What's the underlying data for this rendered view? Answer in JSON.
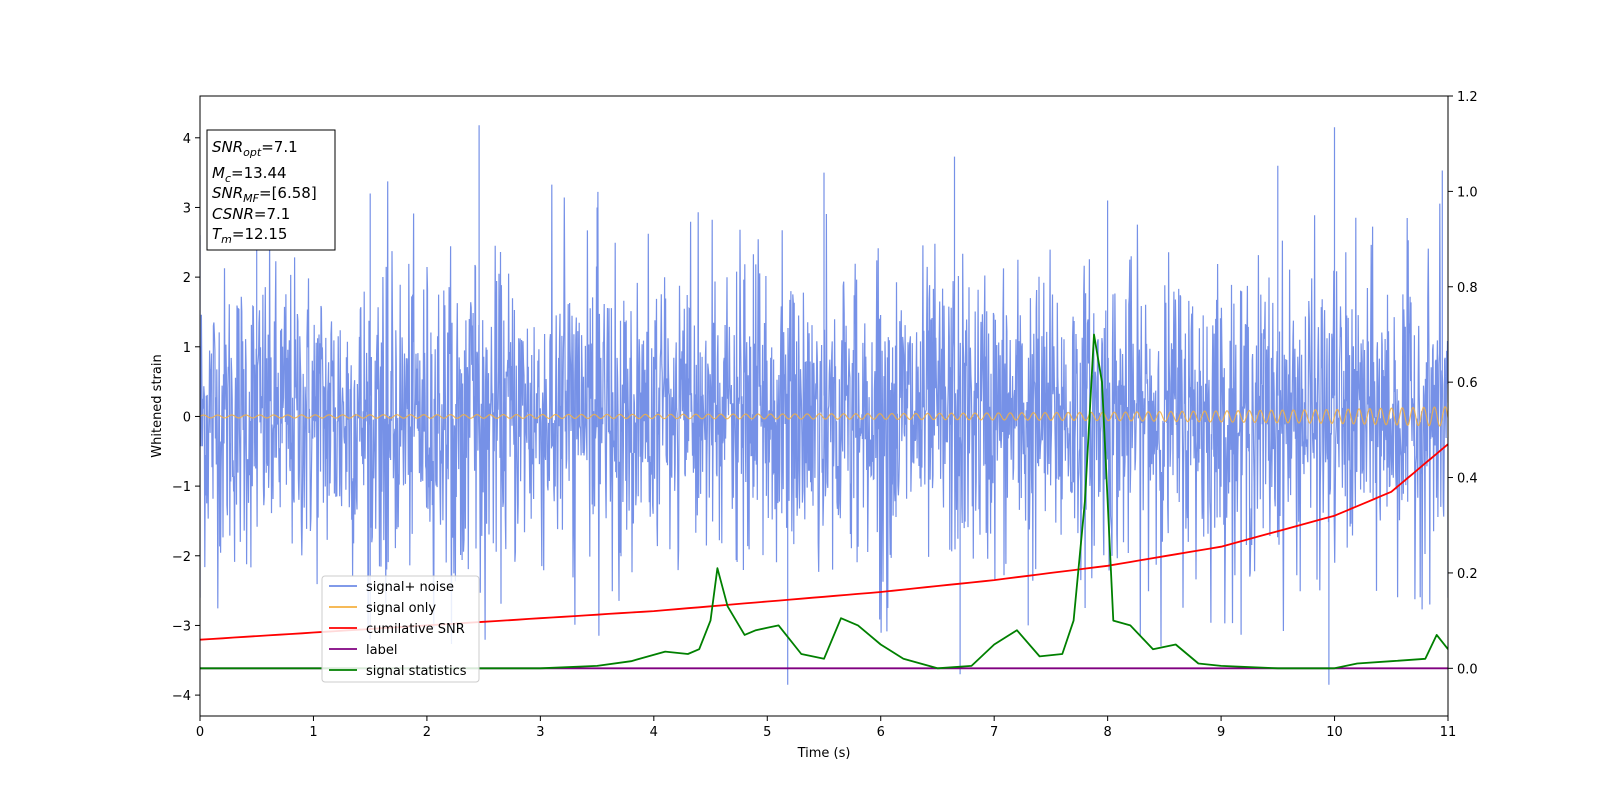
{
  "chart_data": {
    "type": "line",
    "xlabel": "Time (s)",
    "ylabel": "Whitened strain",
    "xlim": [
      0,
      11
    ],
    "ylim": [
      -4.3,
      4.6
    ],
    "ylim_right": [
      -0.1,
      1.2
    ],
    "x_ticks": [
      0,
      1,
      2,
      3,
      4,
      5,
      6,
      7,
      8,
      9,
      10,
      11
    ],
    "y_ticks": [
      -4,
      -3,
      -2,
      -1,
      0,
      1,
      2,
      3,
      4
    ],
    "y_ticks_right": [
      "0.0",
      "0.2",
      "0.4",
      "0.6",
      "0.8",
      "1.0",
      "1.2"
    ],
    "y_tick_labels": [
      "−4",
      "−3",
      "−2",
      "−1",
      "0",
      "1",
      "2",
      "3",
      "4"
    ],
    "colors": {
      "signal_noise": "#6f8be6",
      "signal_only": "#f5b041",
      "cumulative_snr": "#ff0000",
      "label": "#800080",
      "signal_statistics": "#008000"
    },
    "series": [
      {
        "name": "signal+ noise",
        "axis": "left",
        "description": "whitened noise, approx. gaussian with max excursions",
        "envelope_max": [
          [
            0.0,
            2.6
          ],
          [
            0.5,
            3.0
          ],
          [
            1.5,
            3.2
          ],
          [
            2.46,
            4.18
          ],
          [
            3.5,
            3.0
          ],
          [
            5.5,
            3.5
          ],
          [
            6.65,
            3.73
          ],
          [
            8.0,
            3.1
          ],
          [
            9.5,
            3.6
          ],
          [
            10.0,
            4.15
          ],
          [
            10.95,
            3.53
          ]
        ],
        "envelope_min": [
          [
            0.0,
            -2.6
          ],
          [
            1.5,
            -3.2
          ],
          [
            5.18,
            -3.85
          ],
          [
            6.7,
            -3.7
          ],
          [
            7.3,
            -3.0
          ],
          [
            9.95,
            -3.85
          ],
          [
            11.0,
            -2.6
          ]
        ]
      },
      {
        "name": "signal only",
        "axis": "left",
        "x": [
          0,
          2,
          4,
          6,
          8,
          9,
          10,
          10.5,
          11
        ],
        "amplitude": [
          0.02,
          0.025,
          0.03,
          0.04,
          0.06,
          0.08,
          0.1,
          0.12,
          0.14
        ]
      },
      {
        "name": "cumilative SNR",
        "axis": "right",
        "x": [
          0,
          1,
          2,
          3,
          4,
          5,
          6,
          7,
          8,
          9,
          10,
          10.5,
          11
        ],
        "values": [
          0.06,
          0.075,
          0.09,
          0.105,
          0.12,
          0.14,
          0.16,
          0.185,
          0.215,
          0.255,
          0.32,
          0.37,
          0.47
        ]
      },
      {
        "name": "label",
        "axis": "right",
        "x": [
          0,
          11
        ],
        "values": [
          0.0,
          0.0
        ]
      },
      {
        "name": "signal statistics",
        "axis": "right",
        "x": [
          0,
          0.5,
          1,
          1.5,
          2,
          2.5,
          3,
          3.5,
          3.8,
          4.1,
          4.3,
          4.4,
          4.5,
          4.56,
          4.65,
          4.8,
          4.9,
          5,
          5.1,
          5.3,
          5.5,
          5.65,
          5.8,
          6,
          6.2,
          6.5,
          6.8,
          7.0,
          7.2,
          7.4,
          7.6,
          7.7,
          7.8,
          7.88,
          7.95,
          8.05,
          8.2,
          8.4,
          8.6,
          8.8,
          9.0,
          9.5,
          10.0,
          10.2,
          10.5,
          10.8,
          10.9,
          11
        ],
        "values": [
          0.0,
          0.0,
          0.0,
          0.0,
          0.0,
          0.0,
          0.0,
          0.005,
          0.015,
          0.035,
          0.03,
          0.04,
          0.1,
          0.21,
          0.13,
          0.07,
          0.08,
          0.085,
          0.09,
          0.03,
          0.02,
          0.105,
          0.09,
          0.05,
          0.02,
          0.0,
          0.005,
          0.05,
          0.08,
          0.025,
          0.03,
          0.1,
          0.35,
          0.7,
          0.6,
          0.1,
          0.09,
          0.04,
          0.05,
          0.01,
          0.005,
          0.0,
          0.0,
          0.01,
          0.015,
          0.02,
          0.07,
          0.04
        ]
      }
    ],
    "legend": {
      "placement": "lower-left",
      "entries": [
        "signal+ noise",
        "signal only",
        "cumilative SNR",
        "label",
        "signal statistics"
      ]
    }
  },
  "info_box": {
    "snr_opt": {
      "base": "SNR",
      "sub": "opt",
      "value": "=7.1"
    },
    "mc": {
      "base": "M",
      "sub": "c",
      "value": "=13.44"
    },
    "snr_mf": {
      "base": "SNR",
      "sub": "MF",
      "value": "=[6.58]"
    },
    "csnr": {
      "base": "CSNR",
      "value": "=7.1"
    },
    "tm": {
      "base": "T",
      "sub": "m",
      "value": "=12.15"
    }
  }
}
